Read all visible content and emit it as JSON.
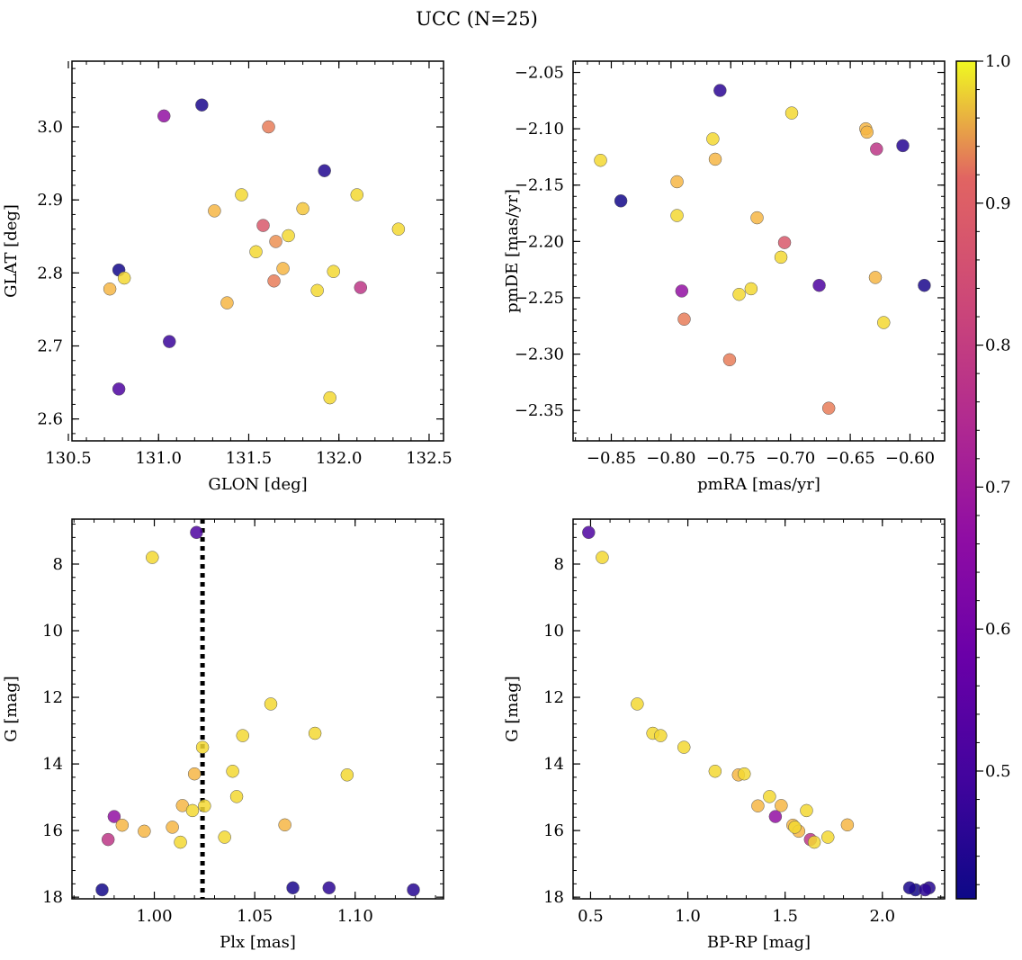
{
  "figure": {
    "title": "UCC (N=25)"
  },
  "colorbar": {
    "colormap": "plasma",
    "range": [
      0.41,
      1.0
    ],
    "ticks": [
      0.5,
      0.6,
      0.7,
      0.8,
      0.9,
      1.0
    ],
    "tick_labels": [
      "0.5",
      "0.6",
      "0.7",
      "0.8",
      "0.9",
      "1.0"
    ]
  },
  "chart_data": [
    {
      "type": "scatter",
      "xlabel": "GLON [deg]",
      "ylabel": "GLAT [deg]",
      "xlim": [
        130.52,
        132.58
      ],
      "ylim": [
        2.57,
        3.09
      ],
      "xticks": [
        130.5,
        131.0,
        131.5,
        132.0,
        132.5
      ],
      "xtick_labels": [
        "130.5",
        "131.0",
        "131.5",
        "132.0",
        "132.5"
      ],
      "yticks": [
        2.6,
        2.7,
        2.8,
        2.9,
        3.0
      ],
      "ytick_labels": [
        "2.6",
        "2.7",
        "2.8",
        "2.9",
        "3.0"
      ],
      "x": [
        131.24,
        131.03,
        131.61,
        131.92,
        131.46,
        132.1,
        131.31,
        131.8,
        131.58,
        132.33,
        131.72,
        131.65,
        131.54,
        130.78,
        130.73,
        130.81,
        131.69,
        131.97,
        131.64,
        131.88,
        132.12,
        131.38,
        131.06,
        130.78,
        131.95
      ],
      "y": [
        3.03,
        3.015,
        3.0,
        2.94,
        2.907,
        2.907,
        2.885,
        2.888,
        2.865,
        2.86,
        2.851,
        2.843,
        2.829,
        2.804,
        2.778,
        2.793,
        2.806,
        2.802,
        2.789,
        2.776,
        2.78,
        2.759,
        2.706,
        2.641,
        2.629
      ],
      "prob": [
        0.43,
        0.67,
        0.93,
        0.44,
        0.98,
        0.98,
        0.96,
        0.97,
        0.88,
        0.98,
        0.98,
        0.94,
        0.98,
        0.42,
        0.96,
        0.98,
        0.96,
        0.98,
        0.93,
        0.98,
        0.78,
        0.96,
        0.48,
        0.52,
        0.98
      ]
    },
    {
      "type": "scatter",
      "xlabel": "pmRA [mas/yr]",
      "ylabel": "pmDE [mas/yr]",
      "xlim": [
        -0.882,
        -0.571
      ],
      "ylim": [
        -2.377,
        -2.04
      ],
      "xticks": [
        -0.85,
        -0.8,
        -0.75,
        -0.7,
        -0.65,
        -0.6
      ],
      "xtick_labels": [
        "−0.85",
        "−0.80",
        "−0.75",
        "−0.70",
        "−0.65",
        "−0.60"
      ],
      "yticks": [
        -2.35,
        -2.3,
        -2.25,
        -2.2,
        -2.15,
        -2.1,
        -2.05
      ],
      "ytick_labels": [
        "−2.35",
        "−2.30",
        "−2.25",
        "−2.20",
        "−2.15",
        "−2.10",
        "−2.05"
      ],
      "x": [
        -0.759,
        -0.699,
        -0.637,
        -0.636,
        -0.606,
        -0.628,
        -0.765,
        -0.763,
        -0.859,
        -0.842,
        -0.795,
        -0.795,
        -0.728,
        -0.705,
        -0.708,
        -0.629,
        -0.676,
        -0.588,
        -0.733,
        -0.743,
        -0.791,
        -0.789,
        -0.622,
        -0.751,
        -0.668
      ],
      "y": [
        -2.066,
        -2.086,
        -2.1,
        -2.103,
        -2.115,
        -2.118,
        -2.109,
        -2.127,
        -2.128,
        -2.164,
        -2.147,
        -2.177,
        -2.179,
        -2.201,
        -2.214,
        -2.232,
        -2.239,
        -2.239,
        -2.242,
        -2.247,
        -2.244,
        -2.269,
        -2.272,
        -2.305,
        -2.348
      ],
      "prob": [
        0.46,
        0.98,
        0.96,
        0.96,
        0.45,
        0.78,
        0.98,
        0.96,
        0.98,
        0.42,
        0.96,
        0.98,
        0.96,
        0.88,
        0.98,
        0.96,
        0.52,
        0.43,
        0.98,
        0.98,
        0.67,
        0.93,
        0.98,
        0.93,
        0.93
      ]
    },
    {
      "type": "scatter",
      "xlabel": "Plx [mas]",
      "ylabel": "G [mag]",
      "xlim": [
        0.959,
        1.144
      ],
      "ylim": [
        18.05,
        6.65
      ],
      "y_inverted": true,
      "xticks": [
        1.0,
        1.05,
        1.1
      ],
      "xtick_labels": [
        "1.00",
        "1.05",
        "1.10"
      ],
      "yticks": [
        8,
        10,
        12,
        14,
        16,
        18
      ],
      "ytick_labels": [
        "8",
        "10",
        "12",
        "14",
        "16",
        "18"
      ],
      "vline_x": 1.024,
      "x": [
        1.021,
        0.999,
        1.058,
        1.08,
        1.044,
        1.024,
        1.039,
        1.02,
        1.096,
        1.041,
        1.014,
        1.025,
        1.019,
        0.984,
        0.98,
        1.009,
        1.065,
        0.995,
        0.977,
        1.013,
        1.035,
        0.974,
        1.069,
        1.087,
        1.129
      ],
      "y": [
        7.05,
        7.8,
        12.2,
        13.08,
        13.15,
        13.5,
        14.22,
        14.3,
        14.33,
        14.98,
        15.25,
        15.26,
        15.4,
        15.84,
        15.58,
        15.9,
        15.83,
        16.02,
        16.27,
        16.35,
        16.2,
        17.78,
        17.72,
        17.72,
        17.78
      ],
      "prob": [
        0.52,
        0.98,
        0.98,
        0.98,
        0.98,
        0.98,
        0.98,
        0.96,
        0.98,
        0.98,
        0.96,
        0.98,
        0.98,
        0.96,
        0.67,
        0.96,
        0.96,
        0.96,
        0.78,
        0.98,
        0.98,
        0.42,
        0.43,
        0.46,
        0.45
      ]
    },
    {
      "type": "scatter",
      "xlabel": "BP-RP [mag]",
      "ylabel": "G [mag]",
      "xlim": [
        0.41,
        2.32
      ],
      "ylim": [
        18.05,
        6.65
      ],
      "y_inverted": true,
      "xticks": [
        0.5,
        1.0,
        1.5,
        2.0
      ],
      "xtick_labels": [
        "0.5",
        "1.0",
        "1.5",
        "2.0"
      ],
      "yticks": [
        8,
        10,
        12,
        14,
        16,
        18
      ],
      "ytick_labels": [
        "8",
        "10",
        "12",
        "14",
        "16",
        "18"
      ],
      "x": [
        0.49,
        0.56,
        0.74,
        0.82,
        0.86,
        0.98,
        1.14,
        1.26,
        1.29,
        1.42,
        1.36,
        1.48,
        1.61,
        1.45,
        1.54,
        1.55,
        1.82,
        1.57,
        1.63,
        1.65,
        1.72,
        2.14,
        2.17,
        2.22,
        2.24
      ],
      "y": [
        7.05,
        7.8,
        12.2,
        13.08,
        13.15,
        13.5,
        14.22,
        14.33,
        14.3,
        14.98,
        15.26,
        15.25,
        15.4,
        15.58,
        15.84,
        15.9,
        15.83,
        16.02,
        16.27,
        16.35,
        16.2,
        17.72,
        17.78,
        17.78,
        17.72
      ],
      "prob": [
        0.52,
        0.98,
        0.98,
        0.98,
        0.98,
        0.98,
        0.98,
        0.96,
        0.98,
        0.98,
        0.96,
        0.96,
        0.98,
        0.67,
        0.96,
        0.98,
        0.96,
        0.96,
        0.78,
        0.98,
        0.98,
        0.43,
        0.42,
        0.46,
        0.45
      ]
    }
  ]
}
